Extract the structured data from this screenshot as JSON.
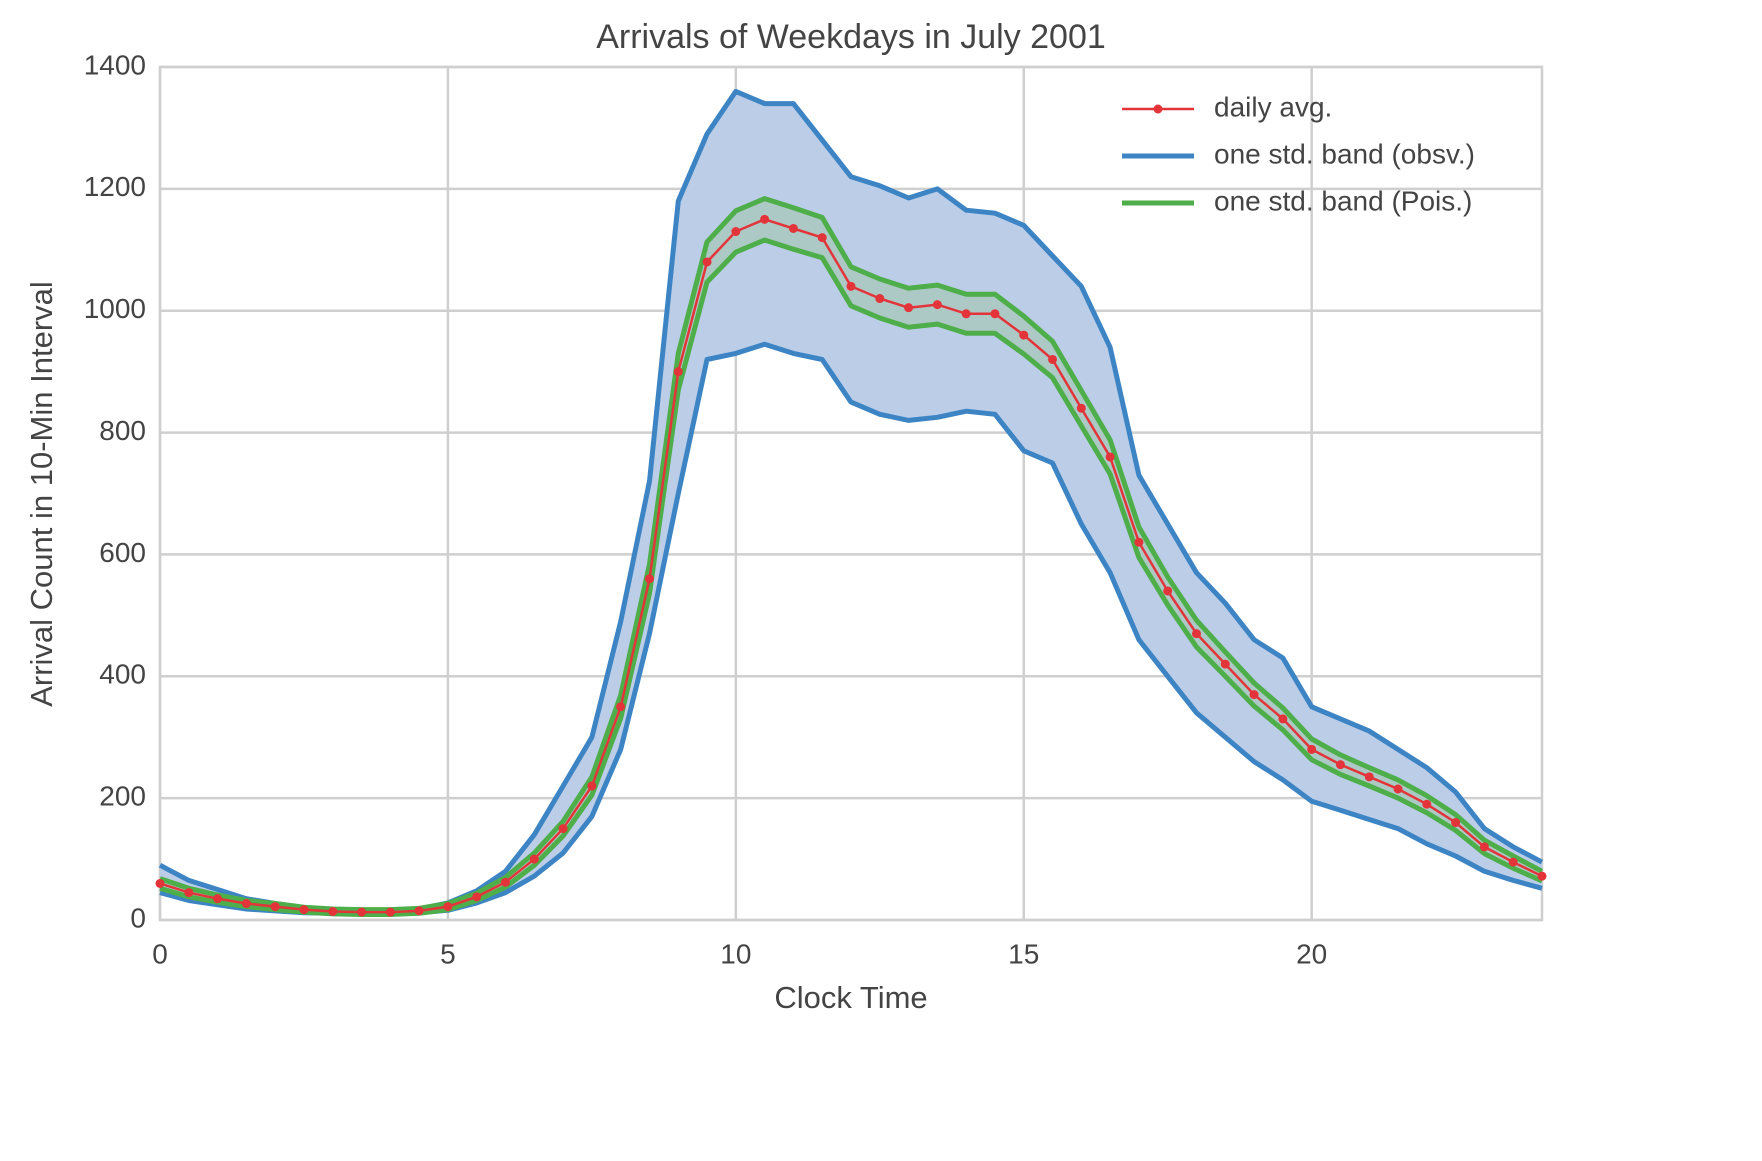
{
  "chart_data": {
    "type": "line",
    "title": "Arrivals of Weekdays in July 2001",
    "xlabel": "Clock Time",
    "ylabel": "Arrival Count in 10-Min Interval",
    "x": [
      0,
      0.5,
      1,
      1.5,
      2,
      2.5,
      3,
      3.5,
      4,
      4.5,
      5,
      5.5,
      6,
      6.5,
      7,
      7.5,
      8,
      8.5,
      9,
      9.5,
      10,
      10.5,
      11,
      11.5,
      12,
      12.5,
      13,
      13.5,
      14,
      14.5,
      15,
      15.5,
      16,
      16.5,
      17,
      17.5,
      18,
      18.5,
      19,
      19.5,
      20,
      20.5,
      21,
      21.5,
      22,
      22.5,
      23,
      23.5,
      24
    ],
    "xlim": [
      0,
      24
    ],
    "xticks": [
      0,
      5,
      10,
      15,
      20
    ],
    "ylim": [
      0,
      1400
    ],
    "yticks": [
      0,
      200,
      400,
      600,
      800,
      1000,
      1200,
      1400
    ],
    "grid": true,
    "legend": "upper right",
    "series": [
      {
        "name": "daily avg.",
        "color": "#e3343a",
        "marker": true,
        "values": [
          60,
          45,
          35,
          27,
          22,
          17,
          14,
          13,
          13,
          15,
          22,
          38,
          62,
          100,
          150,
          220,
          350,
          560,
          900,
          1080,
          1130,
          1150,
          1135,
          1120,
          1040,
          1020,
          1005,
          1010,
          995,
          995,
          960,
          920,
          840,
          760,
          620,
          540,
          470,
          420,
          370,
          330,
          280,
          255,
          235,
          215,
          190,
          160,
          120,
          95,
          72
        ]
      },
      {
        "name": "one std. band (obsv.)",
        "color": "#3d84c4",
        "fill": "#bccde8",
        "upper": [
          90,
          65,
          50,
          35,
          27,
          20,
          16,
          15,
          15,
          18,
          28,
          48,
          80,
          140,
          220,
          300,
          490,
          720,
          1180,
          1290,
          1360,
          1340,
          1340,
          1280,
          1220,
          1205,
          1185,
          1200,
          1165,
          1160,
          1140,
          1090,
          1040,
          940,
          730,
          650,
          570,
          520,
          460,
          430,
          350,
          330,
          310,
          280,
          250,
          210,
          150,
          120,
          95
        ],
        "lower": [
          45,
          32,
          25,
          18,
          15,
          12,
          11,
          10,
          10,
          12,
          16,
          28,
          45,
          72,
          110,
          170,
          280,
          470,
          700,
          920,
          930,
          945,
          930,
          920,
          850,
          830,
          820,
          825,
          835,
          830,
          770,
          750,
          650,
          570,
          460,
          400,
          340,
          300,
          260,
          230,
          195,
          180,
          165,
          150,
          125,
          105,
          80,
          65,
          52
        ]
      },
      {
        "name": "one std. band (Pois.)",
        "color": "#4dae4a",
        "fill": "#9fc6a8",
        "upper": [
          68,
          52,
          41,
          32,
          27,
          21,
          18,
          17,
          17,
          19,
          27,
          44,
          70,
          110,
          162,
          235,
          369,
          584,
          930,
          1113,
          1164,
          1184,
          1169,
          1153,
          1072,
          1052,
          1037,
          1042,
          1027,
          1027,
          991,
          950,
          869,
          788,
          645,
          563,
          492,
          440,
          389,
          348,
          297,
          271,
          250,
          230,
          204,
          173,
          131,
          105,
          80
        ],
        "lower": [
          52,
          38,
          29,
          22,
          17,
          13,
          10,
          9,
          9,
          11,
          17,
          32,
          54,
          90,
          138,
          205,
          331,
          536,
          870,
          1047,
          1096,
          1116,
          1101,
          1087,
          1008,
          988,
          973,
          978,
          963,
          963,
          929,
          890,
          811,
          732,
          595,
          517,
          448,
          400,
          351,
          312,
          263,
          239,
          220,
          200,
          176,
          147,
          109,
          85,
          64
        ]
      }
    ]
  }
}
